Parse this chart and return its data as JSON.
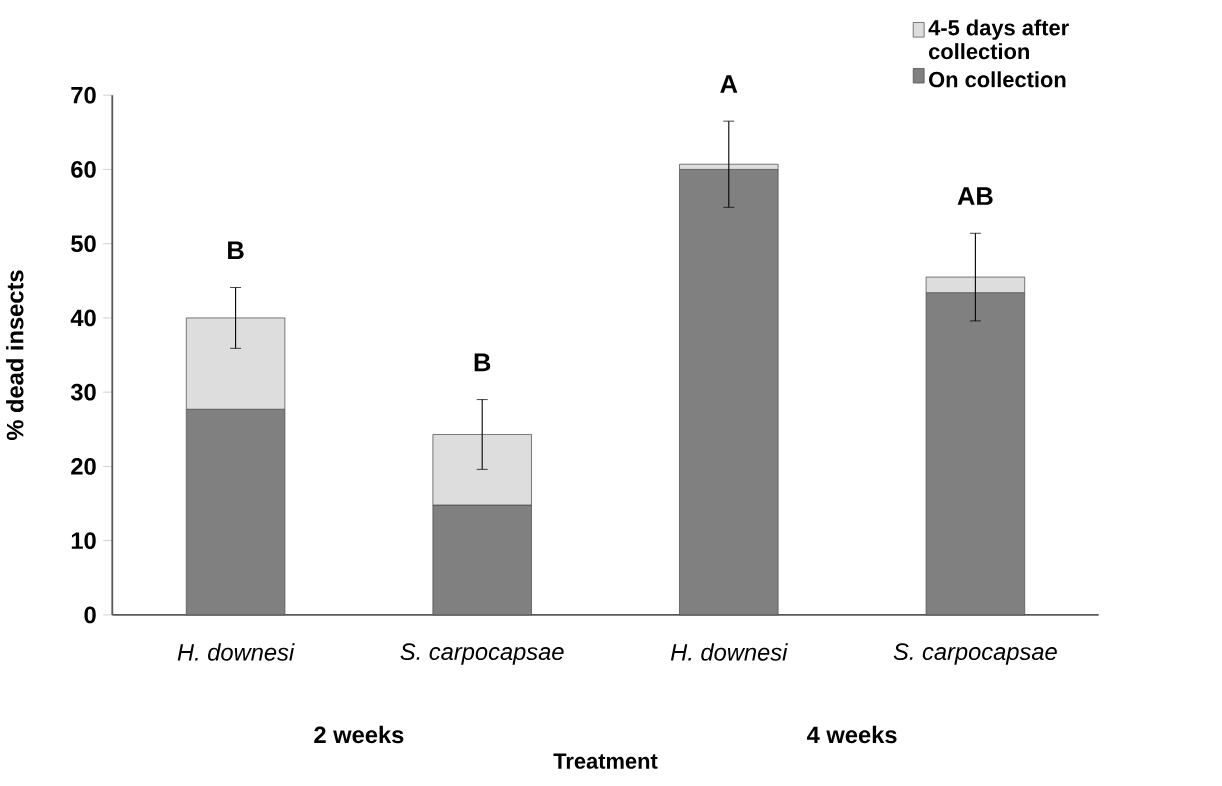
{
  "chart_data": {
    "type": "bar",
    "stacked": true,
    "xlabel": "Treatment",
    "ylabel": "% dead insects",
    "categories": [
      "H. downesi",
      "S. carpocapsae",
      "H. downesi",
      "S. carpocapsae"
    ],
    "series": [
      {
        "name": "On collection",
        "color": "#808080",
        "values": [
          27.7,
          14.8,
          60,
          43.4
        ]
      },
      {
        "name": "4-5 days after collection",
        "color": "#dddddd",
        "values": [
          12.3,
          9.5,
          0.7,
          2.1
        ],
        "errors": [
          4.1,
          4.7,
          5.8,
          5.9
        ]
      }
    ],
    "ylim": [
      0,
      70
    ],
    "yticks": [
      0,
      10,
      20,
      30,
      40,
      50,
      60,
      70
    ],
    "legend": "top right",
    "grid": false,
    "annotations": [
      "B",
      "B",
      "A",
      "AB",
      "2 weeks",
      "4 weeks"
    ]
  }
}
